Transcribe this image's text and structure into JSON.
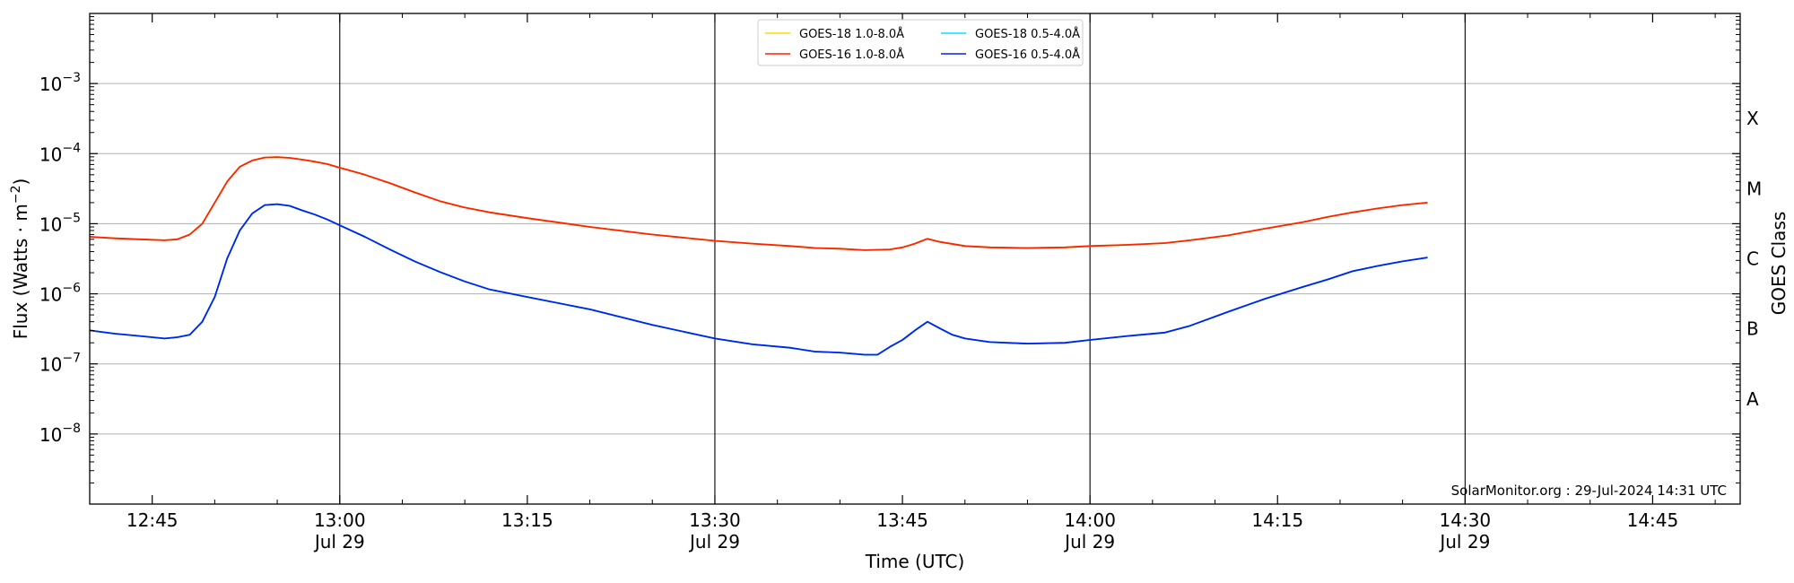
{
  "chart_data": {
    "type": "line",
    "title": "",
    "xlabel": "Time (UTC)",
    "ylabel_parts": [
      "Flux (Watts · m",
      "−2",
      ")"
    ],
    "right_label": "GOES Class",
    "y_scale": "log",
    "ylim": [
      1e-09,
      0.01
    ],
    "xlim": [
      "12:40",
      "14:52"
    ],
    "grid": "horizontal at decades 1e-8 to 1e-3",
    "legend_placement": "top-center",
    "credit": "SolarMonitor.org : 29-Jul-2024 14:31 UTC",
    "y_ticks": [
      {
        "value": 1e-08,
        "exp": "−8"
      },
      {
        "value": 1e-07,
        "exp": "−7"
      },
      {
        "value": 1e-06,
        "exp": "−6"
      },
      {
        "value": 1e-05,
        "exp": "−5"
      },
      {
        "value": 0.0001,
        "exp": "−4"
      },
      {
        "value": 0.001,
        "exp": "−3"
      }
    ],
    "x_ticks": [
      {
        "time": "12:45",
        "label": "12:45",
        "date": ""
      },
      {
        "time": "13:00",
        "label": "13:00",
        "date": "Jul 29"
      },
      {
        "time": "13:15",
        "label": "13:15",
        "date": ""
      },
      {
        "time": "13:30",
        "label": "13:30",
        "date": "Jul 29"
      },
      {
        "time": "13:45",
        "label": "13:45",
        "date": ""
      },
      {
        "time": "14:00",
        "label": "14:00",
        "date": "Jul 29"
      },
      {
        "time": "14:15",
        "label": "14:15",
        "date": ""
      },
      {
        "time": "14:30",
        "label": "14:30",
        "date": "Jul 29"
      },
      {
        "time": "14:45",
        "label": "14:45",
        "date": ""
      }
    ],
    "vertical_lines": [
      "13:00",
      "13:30",
      "14:00",
      "14:30"
    ],
    "goes_classes": [
      {
        "label": "A",
        "value": 3.162e-08
      },
      {
        "label": "B",
        "value": 3.162e-07
      },
      {
        "label": "C",
        "value": 3.162e-06
      },
      {
        "label": "M",
        "value": 3.162e-05
      },
      {
        "label": "X",
        "value": 0.0003162
      }
    ],
    "legend": [
      {
        "name": "GOES-18 1.0-8.0Å",
        "color": "#ffd700"
      },
      {
        "name": "GOES-16 1.0-8.0Å",
        "color": "#ff2200"
      },
      {
        "name": "GOES-18 0.5-4.0Å",
        "color": "#00e5ff"
      },
      {
        "name": "GOES-16 0.5-4.0Å",
        "color": "#0022ee"
      }
    ],
    "series": [
      {
        "name": "GOES-18 1.0-8.0Å",
        "color": "#ffd700",
        "x": [
          "12:40",
          "12:42",
          "12:44",
          "12:46",
          "12:47",
          "12:48",
          "12:49",
          "12:50",
          "12:51",
          "12:52",
          "12:53",
          "12:54",
          "12:55",
          "12:56",
          "12:57",
          "12:58",
          "12:59",
          "13:00",
          "13:02",
          "13:04",
          "13:06",
          "13:08",
          "13:10",
          "13:12",
          "13:15",
          "13:20",
          "13:25",
          "13:30",
          "13:33",
          "13:36",
          "13:38",
          "13:40",
          "13:42",
          "13:44",
          "13:45",
          "13:46",
          "13:47",
          "13:48",
          "13:50",
          "13:52",
          "13:55",
          "13:58",
          "14:00",
          "14:03",
          "14:06",
          "14:08",
          "14:11",
          "14:14",
          "14:17",
          "14:19",
          "14:21",
          "14:23",
          "14:25",
          "14:27"
        ],
        "values": [
          6.5e-06,
          6.2e-06,
          6e-06,
          5.8e-06,
          6e-06,
          7e-06,
          1e-05,
          2e-05,
          4e-05,
          6.5e-05,
          8e-05,
          8.8e-05,
          8.9e-05,
          8.7e-05,
          8.2e-05,
          7.7e-05,
          7.1e-05,
          6.3e-05,
          5e-05,
          3.8e-05,
          2.8e-05,
          2.1e-05,
          1.7e-05,
          1.45e-05,
          1.2e-05,
          9e-06,
          7e-06,
          5.7e-06,
          5.2e-06,
          4.8e-06,
          4.5e-06,
          4.4e-06,
          4.2e-06,
          4.3e-06,
          4.6e-06,
          5.2e-06,
          6.1e-06,
          5.5e-06,
          4.8e-06,
          4.6e-06,
          4.5e-06,
          4.6e-06,
          4.8e-06,
          5e-06,
          5.3e-06,
          5.8e-06,
          6.8e-06,
          8.5e-06,
          1.05e-05,
          1.25e-05,
          1.45e-05,
          1.65e-05,
          1.85e-05,
          2e-05
        ]
      },
      {
        "name": "GOES-16 1.0-8.0Å",
        "color": "#ff2200",
        "x": [
          "12:40",
          "12:42",
          "12:44",
          "12:46",
          "12:47",
          "12:48",
          "12:49",
          "12:50",
          "12:51",
          "12:52",
          "12:53",
          "12:54",
          "12:55",
          "12:56",
          "12:57",
          "12:58",
          "12:59",
          "13:00",
          "13:02",
          "13:04",
          "13:06",
          "13:08",
          "13:10",
          "13:12",
          "13:15",
          "13:20",
          "13:25",
          "13:30",
          "13:33",
          "13:36",
          "13:38",
          "13:40",
          "13:42",
          "13:44",
          "13:45",
          "13:46",
          "13:47",
          "13:48",
          "13:50",
          "13:52",
          "13:55",
          "13:58",
          "14:00",
          "14:03",
          "14:06",
          "14:08",
          "14:11",
          "14:14",
          "14:17",
          "14:19",
          "14:21",
          "14:23",
          "14:25",
          "14:27"
        ],
        "values": [
          6.5e-06,
          6.2e-06,
          6e-06,
          5.8e-06,
          6e-06,
          7e-06,
          1e-05,
          2e-05,
          4e-05,
          6.5e-05,
          8e-05,
          8.8e-05,
          8.9e-05,
          8.7e-05,
          8.2e-05,
          7.7e-05,
          7.1e-05,
          6.3e-05,
          5e-05,
          3.8e-05,
          2.8e-05,
          2.1e-05,
          1.7e-05,
          1.45e-05,
          1.2e-05,
          9e-06,
          7e-06,
          5.7e-06,
          5.2e-06,
          4.8e-06,
          4.5e-06,
          4.4e-06,
          4.2e-06,
          4.3e-06,
          4.6e-06,
          5.2e-06,
          6.1e-06,
          5.5e-06,
          4.8e-06,
          4.6e-06,
          4.5e-06,
          4.6e-06,
          4.8e-06,
          5e-06,
          5.3e-06,
          5.8e-06,
          6.8e-06,
          8.5e-06,
          1.05e-05,
          1.25e-05,
          1.45e-05,
          1.65e-05,
          1.85e-05,
          2e-05
        ]
      },
      {
        "name": "GOES-18 0.5-4.0Å",
        "color": "#00e5ff",
        "x": [
          "12:40",
          "12:42",
          "12:44",
          "12:46",
          "12:47",
          "12:48",
          "12:49",
          "12:50",
          "12:51",
          "12:52",
          "12:53",
          "12:54",
          "12:55",
          "12:56",
          "12:57",
          "12:58",
          "12:59",
          "13:00",
          "13:02",
          "13:04",
          "13:06",
          "13:08",
          "13:10",
          "13:12",
          "13:15",
          "13:20",
          "13:25",
          "13:30",
          "13:33",
          "13:36",
          "13:38",
          "13:40",
          "13:42",
          "13:43",
          "13:44",
          "13:45",
          "13:46",
          "13:47",
          "13:48",
          "13:49",
          "13:50",
          "13:52",
          "13:55",
          "13:58",
          "14:00",
          "14:03",
          "14:06",
          "14:08",
          "14:11",
          "14:14",
          "14:17",
          "14:19",
          "14:21",
          "14:23",
          "14:25",
          "14:27"
        ],
        "values": [
          3e-07,
          2.7e-07,
          2.5e-07,
          2.3e-07,
          2.4e-07,
          2.6e-07,
          4e-07,
          9e-07,
          3.2e-06,
          8e-06,
          1.4e-05,
          1.85e-05,
          1.9e-05,
          1.8e-05,
          1.55e-05,
          1.35e-05,
          1.15e-05,
          9.5e-06,
          6.5e-06,
          4.3e-06,
          2.9e-06,
          2.05e-06,
          1.5e-06,
          1.15e-06,
          9e-07,
          6e-07,
          3.6e-07,
          2.3e-07,
          1.9e-07,
          1.7e-07,
          1.5e-07,
          1.45e-07,
          1.35e-07,
          1.35e-07,
          1.75e-07,
          2.2e-07,
          3e-07,
          4e-07,
          3.2e-07,
          2.6e-07,
          2.3e-07,
          2.05e-07,
          1.95e-07,
          2e-07,
          2.2e-07,
          2.5e-07,
          2.8e-07,
          3.5e-07,
          5.5e-07,
          8.5e-07,
          1.25e-06,
          1.6e-06,
          2.1e-06,
          2.5e-06,
          2.9e-06,
          3.3e-06
        ]
      },
      {
        "name": "GOES-16 0.5-4.0Å",
        "color": "#0022ee",
        "x": [
          "12:40",
          "12:42",
          "12:44",
          "12:46",
          "12:47",
          "12:48",
          "12:49",
          "12:50",
          "12:51",
          "12:52",
          "12:53",
          "12:54",
          "12:55",
          "12:56",
          "12:57",
          "12:58",
          "12:59",
          "13:00",
          "13:02",
          "13:04",
          "13:06",
          "13:08",
          "13:10",
          "13:12",
          "13:15",
          "13:20",
          "13:25",
          "13:30",
          "13:33",
          "13:36",
          "13:38",
          "13:40",
          "13:42",
          "13:43",
          "13:44",
          "13:45",
          "13:46",
          "13:47",
          "13:48",
          "13:49",
          "13:50",
          "13:52",
          "13:55",
          "13:58",
          "14:00",
          "14:03",
          "14:06",
          "14:08",
          "14:11",
          "14:14",
          "14:17",
          "14:19",
          "14:21",
          "14:23",
          "14:25",
          "14:27"
        ],
        "values": [
          3e-07,
          2.7e-07,
          2.5e-07,
          2.3e-07,
          2.4e-07,
          2.6e-07,
          4e-07,
          9e-07,
          3.2e-06,
          8e-06,
          1.4e-05,
          1.85e-05,
          1.9e-05,
          1.8e-05,
          1.55e-05,
          1.35e-05,
          1.15e-05,
          9.5e-06,
          6.5e-06,
          4.3e-06,
          2.9e-06,
          2.05e-06,
          1.5e-06,
          1.15e-06,
          9e-07,
          6e-07,
          3.6e-07,
          2.3e-07,
          1.9e-07,
          1.7e-07,
          1.5e-07,
          1.45e-07,
          1.35e-07,
          1.35e-07,
          1.75e-07,
          2.2e-07,
          3e-07,
          4e-07,
          3.2e-07,
          2.6e-07,
          2.3e-07,
          2.05e-07,
          1.95e-07,
          2e-07,
          2.2e-07,
          2.5e-07,
          2.8e-07,
          3.5e-07,
          5.5e-07,
          8.5e-07,
          1.25e-06,
          1.6e-06,
          2.1e-06,
          2.5e-06,
          2.9e-06,
          3.3e-06
        ]
      }
    ]
  }
}
